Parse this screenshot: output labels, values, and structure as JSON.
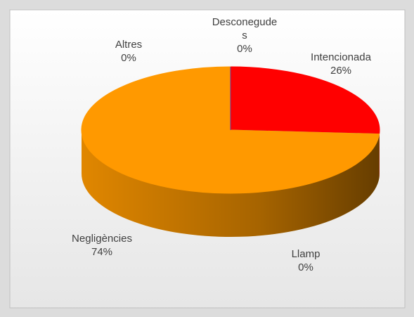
{
  "chart_data": {
    "type": "pie",
    "categories": [
      "Intencionada",
      "Llamp",
      "Negligències",
      "Altres",
      "Desconegudes"
    ],
    "values": [
      26,
      0,
      74,
      0,
      0
    ],
    "value_labels": [
      "26%",
      "0%",
      "74%",
      "0%",
      "0%"
    ],
    "colors": [
      "#ff0000",
      "#4f81bd",
      "#ff9900",
      "#9bbb59",
      "#7030a0"
    ]
  }
}
